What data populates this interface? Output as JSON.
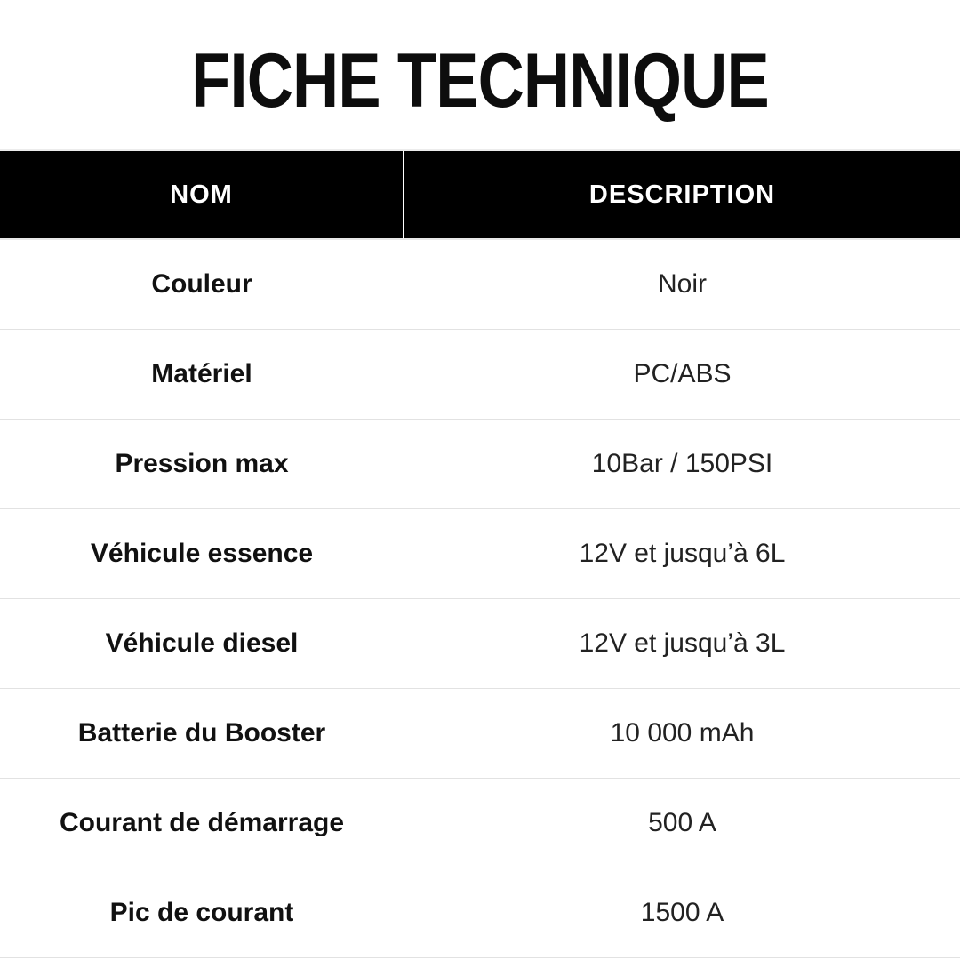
{
  "title": "FICHE TECHNIQUE",
  "colors": {
    "background": "#ffffff",
    "header_bg": "#000000",
    "header_text": "#ffffff",
    "body_text": "#1b1b1b",
    "border": "#e2e2e2"
  },
  "table": {
    "headers": [
      "NOM",
      "DESCRIPTION"
    ],
    "rows": [
      {
        "name": "Couleur",
        "description": "Noir"
      },
      {
        "name": "Matériel",
        "description": "PC/ABS"
      },
      {
        "name": "Pression max",
        "description": "10Bar / 150PSI"
      },
      {
        "name": "Véhicule essence",
        "description": "12V et jusqu’à 6L"
      },
      {
        "name": "Véhicule diesel",
        "description": "12V et jusqu’à 3L"
      },
      {
        "name": "Batterie du Booster",
        "description": "10 000 mAh"
      },
      {
        "name": "Courant de démarrage",
        "description": "500 A"
      },
      {
        "name": "Pic de courant",
        "description": "1500 A"
      }
    ]
  }
}
